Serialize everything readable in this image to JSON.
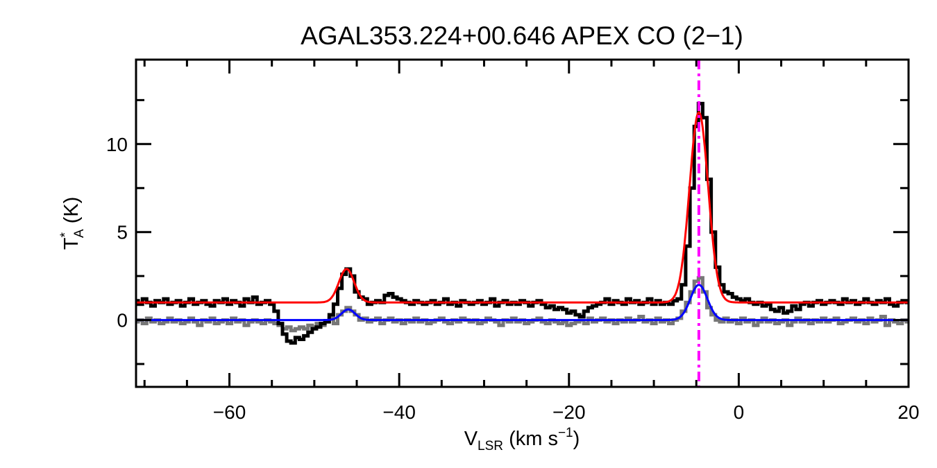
{
  "chart_data": {
    "type": "line",
    "title": "AGAL353.224+00.646  APEX CO (2−1)",
    "xlabel": {
      "main": "V",
      "sub": "LSR",
      "rest": " (km s",
      "sup": "−1",
      "end": ")"
    },
    "ylabel": {
      "main": "T",
      "sup": "*",
      "sub": "A",
      "rest": " (K)"
    },
    "xlim": [
      -71,
      20
    ],
    "ylim": [
      -3.8,
      14.8
    ],
    "x_ticks": [
      -60,
      -40,
      -20,
      0,
      20
    ],
    "x_tick_labels": [
      "−60",
      "−40",
      "−20",
      "0",
      "20"
    ],
    "x_minor_step": 5,
    "y_ticks": [
      0,
      5,
      10
    ],
    "y_tick_labels": [
      "0",
      "5",
      "10"
    ],
    "y_minor_step": 2.5,
    "grid": false,
    "marker_velocity": -4.7,
    "channel_start": -71,
    "channel_width": 0.5,
    "series": [
      {
        "name": "spectrum",
        "color": "#000000",
        "style": "histogram",
        "values": [
          1.1,
          0.9,
          1.2,
          1.0,
          0.8,
          1.1,
          1.0,
          1.2,
          0.9,
          1.0,
          1.1,
          0.8,
          1.0,
          1.2,
          0.9,
          1.0,
          1.1,
          0.9,
          0.8,
          1.1,
          1.0,
          1.2,
          0.9,
          1.1,
          1.0,
          0.8,
          1.2,
          1.0,
          1.3,
          0.9,
          1.0,
          1.1,
          0.9,
          0.5,
          -0.2,
          -0.8,
          -1.2,
          -1.3,
          -1.0,
          -1.1,
          -0.9,
          -0.7,
          -0.5,
          -0.4,
          -0.2,
          -0.1,
          0.3,
          0.9,
          1.8,
          2.6,
          2.9,
          2.5,
          1.6,
          1.3,
          1.2,
          0.9,
          1.0,
          1.1,
          1.0,
          1.4,
          1.5,
          1.3,
          1.2,
          1.1,
          1.0,
          0.9,
          1.1,
          1.0,
          0.9,
          1.0,
          1.1,
          0.9,
          1.0,
          1.2,
          0.9,
          1.0,
          0.8,
          1.1,
          1.0,
          0.9,
          1.0,
          1.1,
          0.9,
          1.0,
          1.2,
          0.8,
          1.0,
          1.1,
          0.9,
          1.0,
          0.9,
          1.1,
          1.0,
          0.8,
          1.0,
          1.1,
          0.9,
          0.7,
          0.8,
          0.6,
          0.7,
          0.6,
          0.4,
          0.5,
          0.3,
          0.2,
          0.5,
          0.7,
          0.8,
          0.9,
          1.0,
          1.2,
          0.9,
          1.1,
          1.0,
          0.9,
          1.2,
          1.0,
          1.1,
          0.9,
          1.0,
          1.2,
          0.9,
          1.1,
          0.9,
          1.0,
          0.9,
          1.1,
          1.2,
          2.0,
          4.2,
          7.5,
          11.0,
          12.3,
          11.5,
          8.0,
          5.0,
          3.0,
          2.0,
          1.6,
          1.5,
          1.3,
          1.2,
          1.1,
          1.2,
          1.0,
          0.9,
          1.0,
          0.8,
          0.9,
          0.6,
          0.5,
          0.7,
          0.4,
          0.5,
          0.8,
          0.6,
          0.9,
          1.0,
          0.8,
          1.0,
          1.1,
          0.9,
          1.0,
          1.1,
          1.0,
          0.9,
          1.2,
          1.0,
          1.1,
          0.9,
          1.0,
          1.2,
          1.0,
          0.9,
          1.1,
          1.0,
          1.2,
          0.9,
          0.8,
          1.0,
          1.1,
          1.0
        ]
      },
      {
        "name": "spectrum-2",
        "color": "#777777",
        "style": "histogram",
        "values": [
          -0.1,
          0.0,
          -0.2,
          0.1,
          -0.1,
          0.0,
          -0.2,
          -0.1,
          0.1,
          -0.1,
          0.0,
          -0.2,
          -0.1,
          0.1,
          -0.1,
          -0.3,
          0.0,
          -0.1,
          0.1,
          -0.2,
          -0.1,
          0.0,
          -0.2,
          0.1,
          -0.1,
          0.0,
          -0.3,
          -0.1,
          0.0,
          -0.1,
          -0.2,
          0.0,
          -0.1,
          -0.2,
          -0.3,
          -0.5,
          -0.4,
          -0.6,
          -0.5,
          -0.4,
          -0.5,
          -0.3,
          -0.4,
          -0.2,
          -0.3,
          -0.1,
          0.1,
          -0.2,
          0.3,
          0.5,
          0.7,
          0.5,
          0.3,
          0.0,
          0.1,
          -0.1,
          0.0,
          0.1,
          -0.2,
          0.0,
          0.1,
          -0.1,
          0.0,
          -0.2,
          0.0,
          -0.1,
          0.1,
          -0.1,
          0.0,
          -0.2,
          -0.1,
          0.0,
          0.1,
          -0.1,
          -0.2,
          0.0,
          -0.1,
          0.1,
          0.0,
          -0.1,
          0.0,
          -0.2,
          -0.1,
          0.1,
          0.0,
          -0.1,
          -0.3,
          0.0,
          -0.1,
          0.1,
          -0.1,
          0.0,
          -0.2,
          -0.1,
          0.0,
          0.1,
          -0.1,
          -0.2,
          0.0,
          -0.1,
          -0.2,
          -0.1,
          -0.3,
          -0.2,
          -0.1,
          0.0,
          -0.2,
          0.1,
          -0.1,
          0.0,
          0.1,
          -0.1,
          0.0,
          -0.2,
          0.0,
          -0.1,
          0.1,
          -0.1,
          0.0,
          0.2,
          -0.1,
          0.0,
          -0.2,
          0.1,
          -0.1,
          0.0,
          -0.2,
          0.0,
          0.1,
          0.5,
          1.0,
          1.6,
          2.2,
          2.4,
          1.6,
          0.7,
          0.3,
          0.0,
          -0.1,
          0.1,
          -0.1,
          0.0,
          -0.2,
          0.1,
          -0.1,
          0.0,
          -0.3,
          -0.1,
          0.1,
          -0.1,
          0.0,
          -0.2,
          -0.1,
          0.0,
          -0.3,
          -0.1,
          0.1,
          -0.1,
          0.0,
          -0.2,
          0.0,
          -0.1,
          0.1,
          -0.1,
          0.0,
          0.1,
          -0.2,
          -0.1,
          0.0,
          0.1,
          -0.1,
          0.0,
          -0.2,
          0.1,
          -0.1,
          0.0,
          0.2,
          -0.3,
          0.0,
          -0.1,
          -0.2,
          0.0,
          -0.1
        ]
      }
    ],
    "fits": [
      {
        "name": "fit",
        "color": "#ff0000",
        "baseline": 1.0,
        "components": [
          {
            "center": -46.2,
            "amplitude": 1.9,
            "sigma": 0.9
          },
          {
            "center": -4.7,
            "amplitude": 10.8,
            "sigma": 1.1
          }
        ]
      },
      {
        "name": "fit-2",
        "color": "#0000ff",
        "baseline": 0.0,
        "components": [
          {
            "center": -46.0,
            "amplitude": 0.6,
            "sigma": 0.8
          },
          {
            "center": -4.7,
            "amplitude": 2.0,
            "sigma": 1.0
          }
        ]
      }
    ],
    "marker_color": "#ff00ff"
  }
}
